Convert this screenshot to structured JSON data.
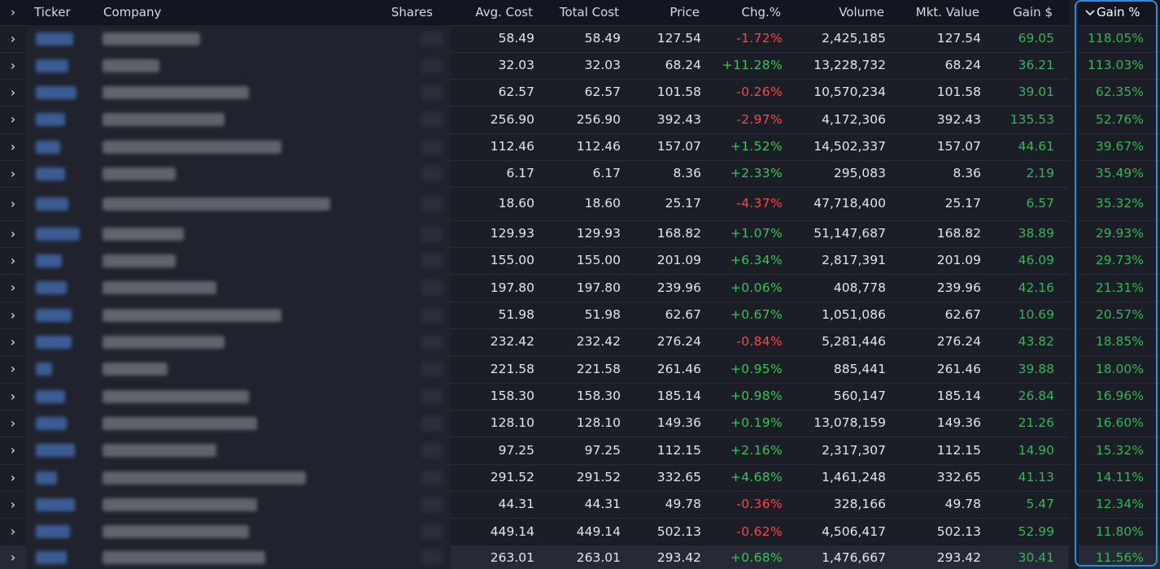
{
  "header": {
    "expand_glyph": "›",
    "ticker": "Ticker",
    "company": "Company",
    "shares": "Shares",
    "avg_cost": "Avg. Cost",
    "total_cost": "Total Cost",
    "price": "Price",
    "chg_pct": "Chg.%",
    "volume": "Volume",
    "mkt_value": "Mkt. Value",
    "gain_usd": "Gain $",
    "gain_pct": "Gain %",
    "sort_icon": "chevron-down-icon"
  },
  "colors": {
    "positive": "#3ec15a",
    "negative": "#f24a4a",
    "sort_highlight": "#2f8be0"
  },
  "rows": [
    {
      "avg_cost": "58.49",
      "total_cost": "58.49",
      "price": "127.54",
      "chg": "-1.72%",
      "volume": "2,425,185",
      "mkt_value": "127.54",
      "gain_usd": "69.05",
      "gain_pct": "118.05%"
    },
    {
      "avg_cost": "32.03",
      "total_cost": "32.03",
      "price": "68.24",
      "chg": "+11.28%",
      "volume": "13,228,732",
      "mkt_value": "68.24",
      "gain_usd": "36.21",
      "gain_pct": "113.03%"
    },
    {
      "avg_cost": "62.57",
      "total_cost": "62.57",
      "price": "101.58",
      "chg": "-0.26%",
      "volume": "10,570,234",
      "mkt_value": "101.58",
      "gain_usd": "39.01",
      "gain_pct": "62.35%"
    },
    {
      "avg_cost": "256.90",
      "total_cost": "256.90",
      "price": "392.43",
      "chg": "-2.97%",
      "volume": "4,172,306",
      "mkt_value": "392.43",
      "gain_usd": "135.53",
      "gain_pct": "52.76%"
    },
    {
      "avg_cost": "112.46",
      "total_cost": "112.46",
      "price": "157.07",
      "chg": "+1.52%",
      "volume": "14,502,337",
      "mkt_value": "157.07",
      "gain_usd": "44.61",
      "gain_pct": "39.67%"
    },
    {
      "avg_cost": "6.17",
      "total_cost": "6.17",
      "price": "8.36",
      "chg": "+2.33%",
      "volume": "295,083",
      "mkt_value": "8.36",
      "gain_usd": "2.19",
      "gain_pct": "35.49%"
    },
    {
      "avg_cost": "18.60",
      "total_cost": "18.60",
      "price": "25.17",
      "chg": "-4.37%",
      "volume": "47,718,400",
      "mkt_value": "25.17",
      "gain_usd": "6.57",
      "gain_pct": "35.32%"
    },
    {
      "avg_cost": "129.93",
      "total_cost": "129.93",
      "price": "168.82",
      "chg": "+1.07%",
      "volume": "51,147,687",
      "mkt_value": "168.82",
      "gain_usd": "38.89",
      "gain_pct": "29.93%"
    },
    {
      "avg_cost": "155.00",
      "total_cost": "155.00",
      "price": "201.09",
      "chg": "+6.34%",
      "volume": "2,817,391",
      "mkt_value": "201.09",
      "gain_usd": "46.09",
      "gain_pct": "29.73%"
    },
    {
      "avg_cost": "197.80",
      "total_cost": "197.80",
      "price": "239.96",
      "chg": "+0.06%",
      "volume": "408,778",
      "mkt_value": "239.96",
      "gain_usd": "42.16",
      "gain_pct": "21.31%"
    },
    {
      "avg_cost": "51.98",
      "total_cost": "51.98",
      "price": "62.67",
      "chg": "+0.67%",
      "volume": "1,051,086",
      "mkt_value": "62.67",
      "gain_usd": "10.69",
      "gain_pct": "20.57%"
    },
    {
      "avg_cost": "232.42",
      "total_cost": "232.42",
      "price": "276.24",
      "chg": "-0.84%",
      "volume": "5,281,446",
      "mkt_value": "276.24",
      "gain_usd": "43.82",
      "gain_pct": "18.85%"
    },
    {
      "avg_cost": "221.58",
      "total_cost": "221.58",
      "price": "261.46",
      "chg": "+0.95%",
      "volume": "885,441",
      "mkt_value": "261.46",
      "gain_usd": "39.88",
      "gain_pct": "18.00%"
    },
    {
      "avg_cost": "158.30",
      "total_cost": "158.30",
      "price": "185.14",
      "chg": "+0.98%",
      "volume": "560,147",
      "mkt_value": "185.14",
      "gain_usd": "26.84",
      "gain_pct": "16.96%"
    },
    {
      "avg_cost": "128.10",
      "total_cost": "128.10",
      "price": "149.36",
      "chg": "+0.19%",
      "volume": "13,078,159",
      "mkt_value": "149.36",
      "gain_usd": "21.26",
      "gain_pct": "16.60%"
    },
    {
      "avg_cost": "97.25",
      "total_cost": "97.25",
      "price": "112.15",
      "chg": "+2.16%",
      "volume": "2,317,307",
      "mkt_value": "112.15",
      "gain_usd": "14.90",
      "gain_pct": "15.32%"
    },
    {
      "avg_cost": "291.52",
      "total_cost": "291.52",
      "price": "332.65",
      "chg": "+4.68%",
      "volume": "1,461,248",
      "mkt_value": "332.65",
      "gain_usd": "41.13",
      "gain_pct": "14.11%"
    },
    {
      "avg_cost": "44.31",
      "total_cost": "44.31",
      "price": "49.78",
      "chg": "-0.36%",
      "volume": "328,166",
      "mkt_value": "49.78",
      "gain_usd": "5.47",
      "gain_pct": "12.34%"
    },
    {
      "avg_cost": "449.14",
      "total_cost": "449.14",
      "price": "502.13",
      "chg": "-0.62%",
      "volume": "4,506,417",
      "mkt_value": "502.13",
      "gain_usd": "52.99",
      "gain_pct": "11.80%"
    },
    {
      "avg_cost": "263.01",
      "total_cost": "263.01",
      "price": "293.42",
      "chg": "+0.68%",
      "volume": "1,476,667",
      "mkt_value": "293.42",
      "gain_usd": "30.41",
      "gain_pct": "11.56%"
    }
  ]
}
